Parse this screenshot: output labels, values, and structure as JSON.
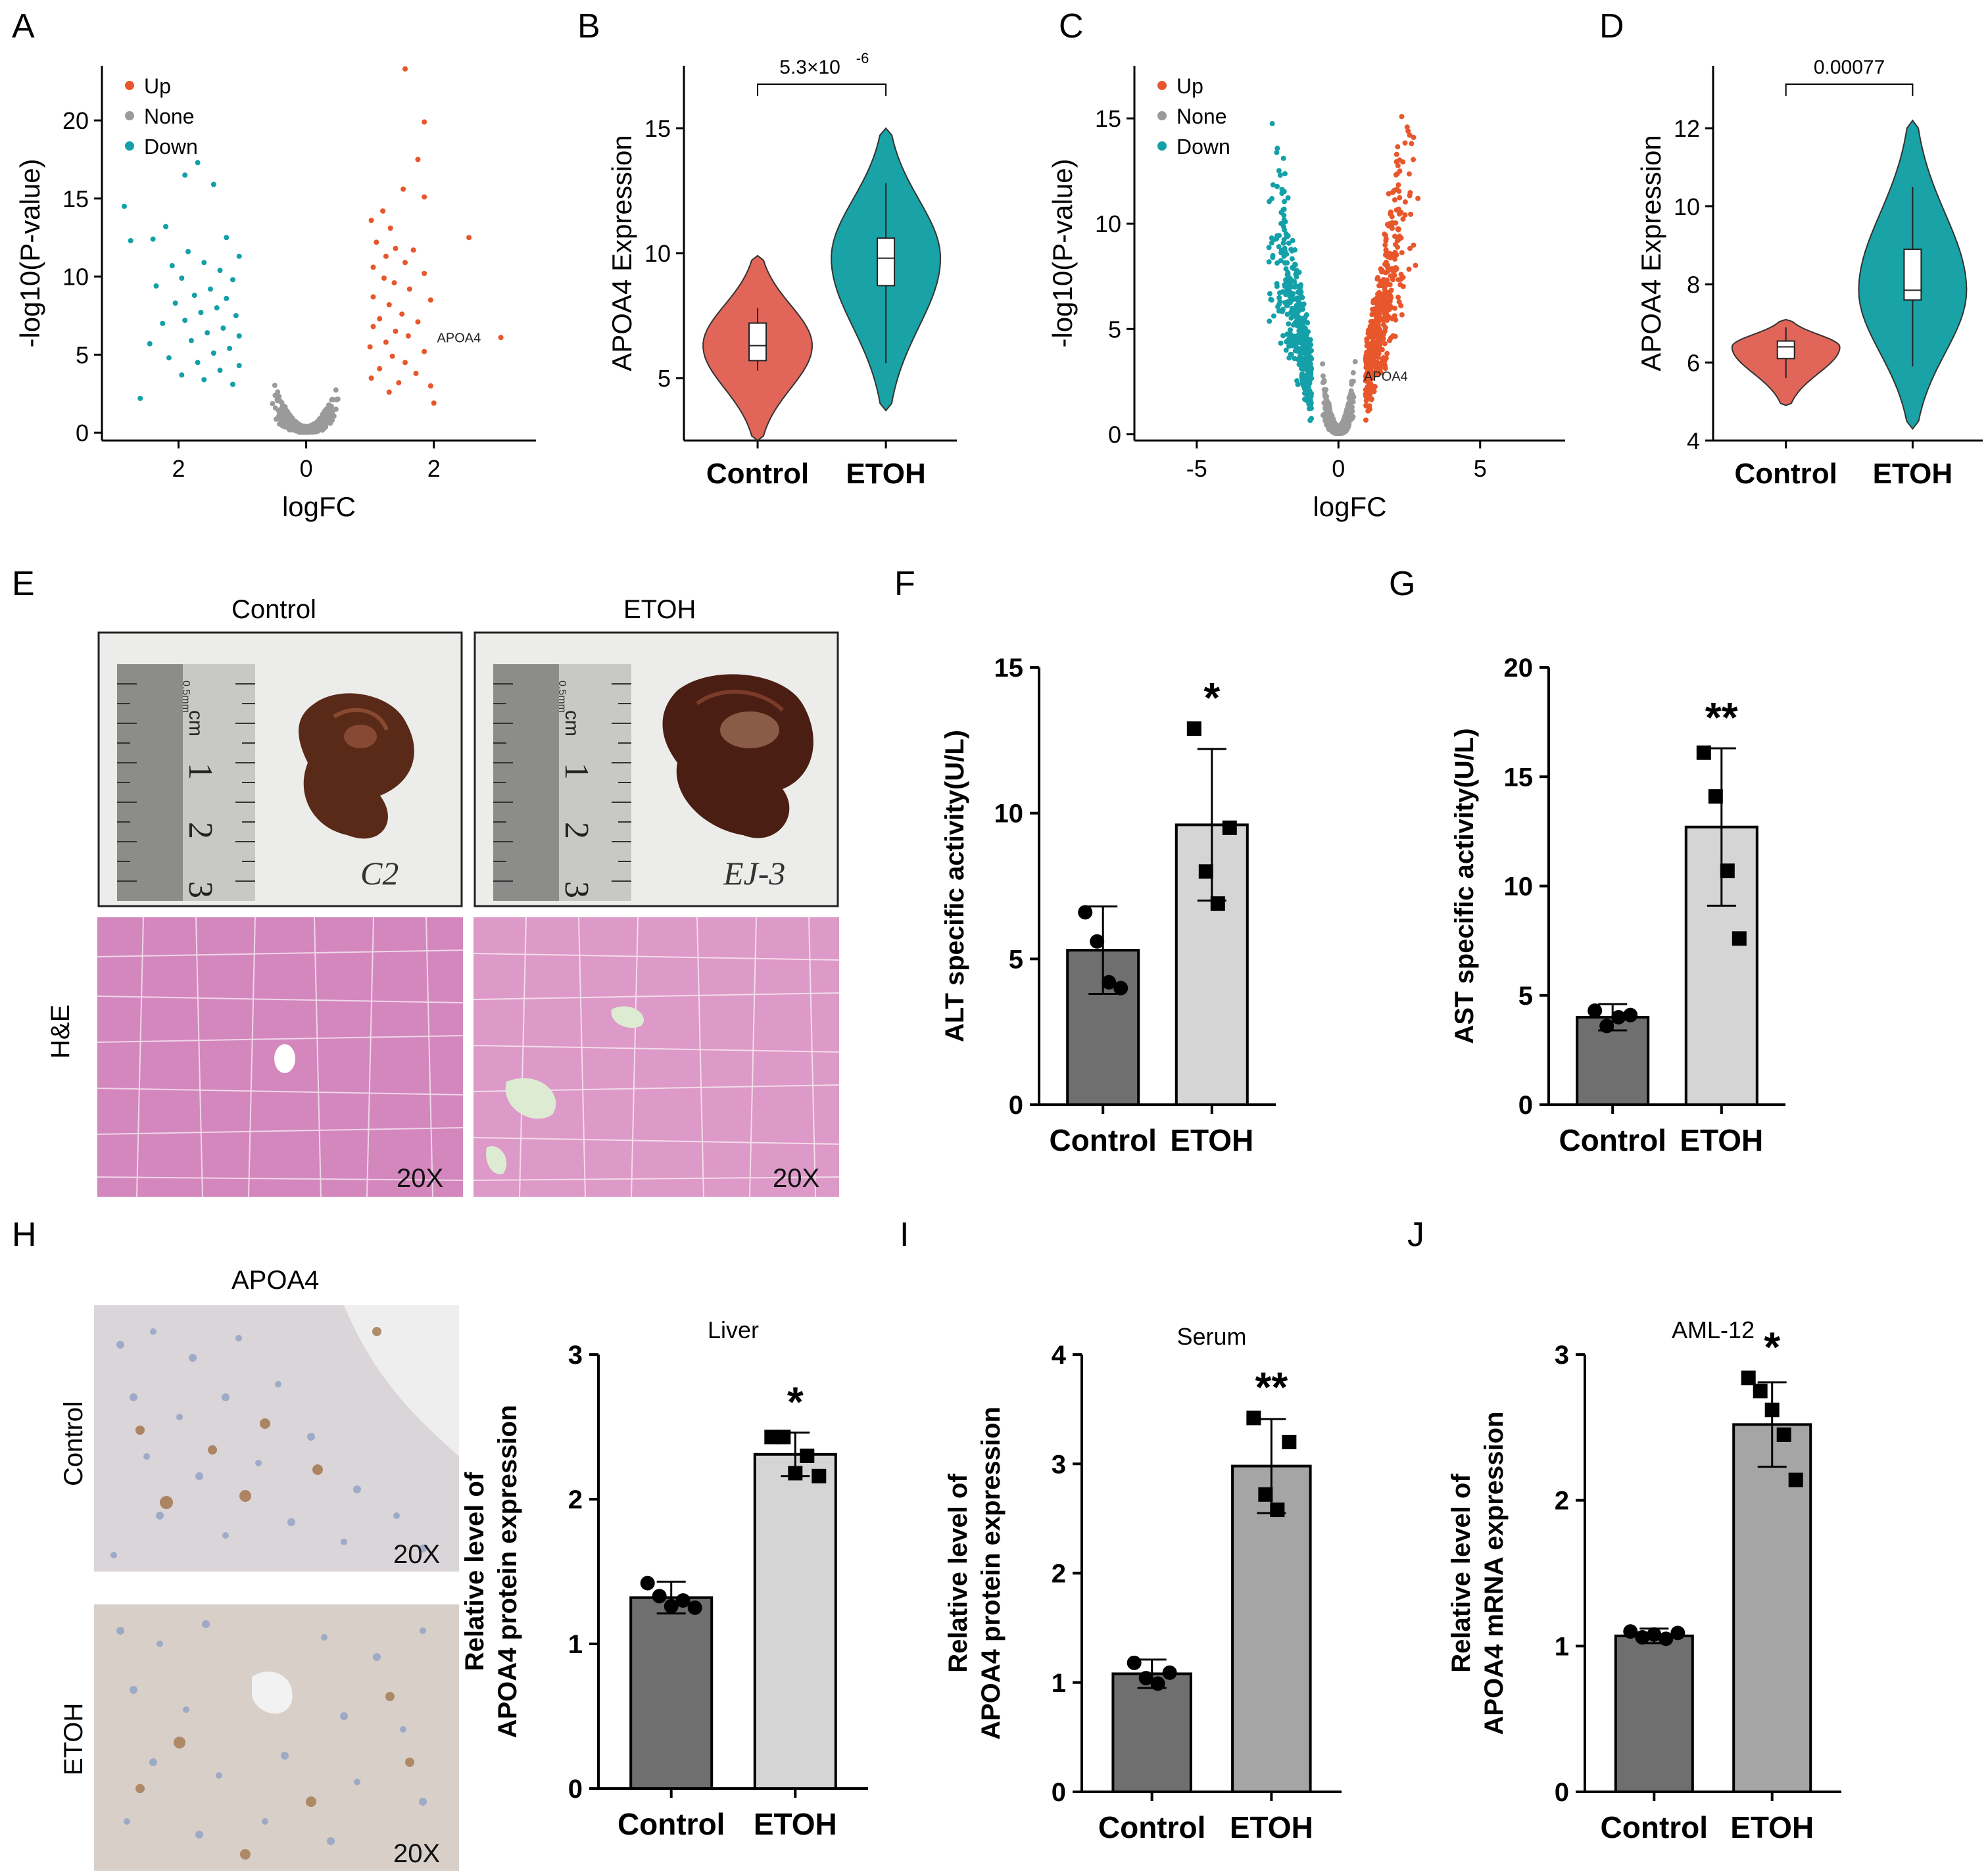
{
  "panel_letters": [
    "A",
    "B",
    "C",
    "D",
    "E",
    "F",
    "G",
    "H",
    "I",
    "J"
  ],
  "colors": {
    "up": "#E8562B",
    "none": "#9A9A9A",
    "down": "#14A0A8",
    "control_violin": "#E16659",
    "etoh_violin": "#19A3A6",
    "control_bar": "#6F6F6F",
    "etoh_bar_light": "#D5D5D5",
    "etoh_bar_mid": "#A5A5A5",
    "he_stain": "#D88BC0",
    "ihc_bg": "#DCD6D8"
  },
  "panel_e": {
    "col_labels": [
      "Control",
      "ETOH"
    ],
    "row_label": "H&E",
    "magnification": "20X",
    "ruler_unit": "cm",
    "ruler_ticks": [
      "1",
      "2",
      "3"
    ],
    "ruler_note": "0.5mm",
    "ruler_mm": "mm",
    "sample_labels": [
      "C2",
      "EJ-3"
    ]
  },
  "panel_h": {
    "title": "APOA4",
    "row_labels": [
      "Control",
      "ETOH"
    ],
    "magnification": "20X"
  },
  "chart_data": [
    {
      "panel": "A",
      "type": "scatter",
      "xlabel": "logFC",
      "ylabel": "-log10(P-value)",
      "xticks": [
        "2",
        "0",
        "2"
      ],
      "yticks": [
        0,
        5,
        10,
        15,
        20
      ],
      "ylim": [
        -0.5,
        23.5
      ],
      "xlim": [
        -3.2,
        3.6
      ],
      "legend": [
        "Up",
        "None",
        "Down"
      ],
      "legend_position": "top-left",
      "annotation": "APOA4",
      "annotation_point": [
        2.05,
        6.0
      ],
      "series": [
        {
          "name": "Up",
          "points": [
            [
              1.55,
              23.3
            ],
            [
              1.85,
              19.9
            ],
            [
              1.75,
              17.5
            ],
            [
              1.52,
              15.6
            ],
            [
              1.85,
              15.1
            ],
            [
              1.2,
              14.2
            ],
            [
              1.02,
              13.6
            ],
            [
              1.32,
              13.1
            ],
            [
              1.1,
              12.2
            ],
            [
              1.4,
              11.8
            ],
            [
              1.68,
              11.7
            ],
            [
              1.25,
              11.3
            ],
            [
              1.55,
              10.9
            ],
            [
              1.05,
              10.6
            ],
            [
              1.85,
              10.2
            ],
            [
              1.22,
              9.9
            ],
            [
              1.38,
              9.6
            ],
            [
              1.62,
              9.2
            ],
            [
              1.05,
              8.7
            ],
            [
              1.95,
              8.5
            ],
            [
              1.3,
              8.2
            ],
            [
              1.5,
              7.6
            ],
            [
              1.15,
              7.3
            ],
            [
              1.75,
              7.1
            ],
            [
              1.05,
              6.8
            ],
            [
              1.4,
              6.5
            ],
            [
              1.6,
              6.2
            ],
            [
              1.25,
              5.8
            ],
            [
              1.0,
              5.5
            ],
            [
              1.85,
              5.2
            ],
            [
              1.35,
              4.9
            ],
            [
              1.55,
              4.5
            ],
            [
              1.15,
              4.1
            ],
            [
              1.72,
              3.8
            ],
            [
              1.02,
              3.5
            ],
            [
              1.45,
              3.2
            ],
            [
              1.95,
              3.0
            ],
            [
              1.3,
              2.6
            ],
            [
              2.0,
              1.9
            ],
            [
              3.05,
              6.1
            ],
            [
              2.55,
              12.5
            ]
          ]
        },
        {
          "name": "Down",
          "points": [
            [
              -1.7,
              17.3
            ],
            [
              -1.9,
              16.5
            ],
            [
              -1.45,
              15.9
            ],
            [
              -2.85,
              14.5
            ],
            [
              -2.2,
              13.2
            ],
            [
              -2.4,
              12.4
            ],
            [
              -1.25,
              12.5
            ],
            [
              -2.75,
              12.3
            ],
            [
              -1.85,
              11.6
            ],
            [
              -1.05,
              11.3
            ],
            [
              -1.6,
              10.9
            ],
            [
              -2.1,
              10.7
            ],
            [
              -1.35,
              10.4
            ],
            [
              -1.95,
              9.9
            ],
            [
              -1.15,
              9.8
            ],
            [
              -2.35,
              9.4
            ],
            [
              -1.5,
              9.2
            ],
            [
              -1.75,
              8.8
            ],
            [
              -1.25,
              8.6
            ],
            [
              -2.05,
              8.3
            ],
            [
              -1.4,
              8.0
            ],
            [
              -1.65,
              7.7
            ],
            [
              -1.1,
              7.5
            ],
            [
              -1.9,
              7.2
            ],
            [
              -2.25,
              7.0
            ],
            [
              -1.3,
              6.7
            ],
            [
              -1.55,
              6.4
            ],
            [
              -1.05,
              6.2
            ],
            [
              -1.8,
              5.9
            ],
            [
              -2.45,
              5.7
            ],
            [
              -1.2,
              5.4
            ],
            [
              -1.45,
              5.1
            ],
            [
              -2.15,
              4.8
            ],
            [
              -1.7,
              4.5
            ],
            [
              -1.05,
              4.3
            ],
            [
              -1.35,
              4.0
            ],
            [
              -1.95,
              3.7
            ],
            [
              -1.6,
              3.4
            ],
            [
              -1.15,
              3.1
            ],
            [
              -2.6,
              2.2
            ]
          ]
        }
      ]
    },
    {
      "panel": "B",
      "type": "violin",
      "categories": [
        "Control",
        "ETOH"
      ],
      "ylabel": "APOA4  Expression",
      "yticks": [
        5,
        10,
        15
      ],
      "ylim": [
        2.5,
        17.5
      ],
      "p_value": "5.3×10",
      "p_exponent": "-6",
      "groups": [
        {
          "name": "Control",
          "min": 2.5,
          "q1": 5.7,
          "median": 6.3,
          "q3": 7.2,
          "max": 9.9,
          "whisker_low": 5.3,
          "whisker_high": 7.8
        },
        {
          "name": "ETOH",
          "min": 3.7,
          "q1": 8.7,
          "median": 9.8,
          "q3": 10.6,
          "max": 15.0,
          "whisker_low": 5.6,
          "whisker_high": 12.8
        }
      ]
    },
    {
      "panel": "C",
      "type": "scatter",
      "xlabel": "logFC",
      "ylabel": "-log10(P-value)",
      "xticks": [
        -5,
        0,
        5
      ],
      "yticks": [
        0,
        5,
        10,
        15
      ],
      "ylim": [
        -0.3,
        17.5
      ],
      "xlim": [
        -7.2,
        8.0
      ],
      "legend": [
        "Up",
        "None",
        "Down"
      ],
      "legend_position": "top-left",
      "annotation": "APOA4",
      "annotation_point": [
        0.9,
        2.7
      ]
    },
    {
      "panel": "D",
      "type": "violin",
      "categories": [
        "Control",
        "ETOH"
      ],
      "ylabel": "APOA4  Expression",
      "yticks": [
        4,
        6,
        8,
        10,
        12
      ],
      "ylim": [
        4.0,
        13.6
      ],
      "p_value": "0.00077",
      "groups": [
        {
          "name": "Control",
          "min": 4.9,
          "q1": 6.1,
          "median": 6.4,
          "q3": 6.55,
          "max": 7.1,
          "whisker_low": 5.6,
          "whisker_high": 6.9
        },
        {
          "name": "ETOH",
          "min": 4.3,
          "q1": 7.6,
          "median": 7.85,
          "q3": 8.9,
          "max": 12.2,
          "whisker_low": 5.9,
          "whisker_high": 10.5
        }
      ]
    },
    {
      "panel": "F",
      "type": "bar",
      "categories": [
        "Control",
        "ETOH"
      ],
      "ylabel": "ALT specific activity(U/L)",
      "yticks": [
        0,
        5,
        10,
        15
      ],
      "ylim": [
        0,
        15
      ],
      "values": [
        5.3,
        9.6
      ],
      "errors": [
        1.5,
        2.6
      ],
      "points": [
        [
          6.6,
          5.6,
          4.2,
          4.0
        ],
        [
          12.9,
          8.0,
          6.9,
          9.5
        ]
      ],
      "significance": [
        "",
        "*"
      ]
    },
    {
      "panel": "G",
      "type": "bar",
      "categories": [
        "Control",
        "ETOH"
      ],
      "ylabel": "AST specific activity(U/L)",
      "yticks": [
        0,
        5,
        10,
        15,
        20
      ],
      "ylim": [
        0,
        20
      ],
      "values": [
        4.0,
        12.7
      ],
      "errors": [
        0.6,
        3.6
      ],
      "points": [
        [
          4.3,
          3.6,
          4.0,
          4.1
        ],
        [
          16.1,
          14.1,
          10.7,
          7.6
        ]
      ],
      "significance": [
        "",
        "**"
      ]
    },
    {
      "panel": "H",
      "type": "bar",
      "title": "Liver",
      "categories": [
        "Control",
        "ETOH"
      ],
      "ylabel": [
        "Relative level of",
        "APOA4 protein expression"
      ],
      "yticks": [
        0,
        1,
        2,
        3
      ],
      "ylim": [
        0,
        3
      ],
      "values": [
        1.32,
        2.31
      ],
      "errors": [
        0.11,
        0.15
      ],
      "points": [
        [
          1.42,
          1.33,
          1.26,
          1.3,
          1.25
        ],
        [
          2.43,
          2.43,
          2.18,
          2.3,
          2.16
        ]
      ],
      "significance": [
        "",
        "*"
      ]
    },
    {
      "panel": "I",
      "type": "bar",
      "title": "Serum",
      "categories": [
        "Control",
        "ETOH"
      ],
      "ylabel": [
        "Relative level of",
        "APOA4 protein expression"
      ],
      "yticks": [
        0,
        1,
        2,
        3,
        4
      ],
      "ylim": [
        0,
        4
      ],
      "values": [
        1.08,
        2.98
      ],
      "errors": [
        0.13,
        0.43
      ],
      "points": [
        [
          1.18,
          1.04,
          0.99,
          1.09
        ],
        [
          3.42,
          2.72,
          2.58,
          3.2
        ]
      ],
      "significance": [
        "",
        "**"
      ]
    },
    {
      "panel": "J",
      "type": "bar",
      "title": "AML-12",
      "categories": [
        "Control",
        "ETOH"
      ],
      "ylabel": [
        "Relative level of",
        "APOA4 mRNA expression"
      ],
      "yticks": [
        0,
        1,
        2,
        3
      ],
      "ylim": [
        0,
        3
      ],
      "values": [
        1.07,
        2.52
      ],
      "errors": [
        0.05,
        0.29
      ],
      "points": [
        [
          1.1,
          1.06,
          1.08,
          1.05,
          1.09
        ],
        [
          2.84,
          2.75,
          2.62,
          2.45,
          2.14
        ]
      ],
      "significance": [
        "",
        "*"
      ]
    }
  ]
}
